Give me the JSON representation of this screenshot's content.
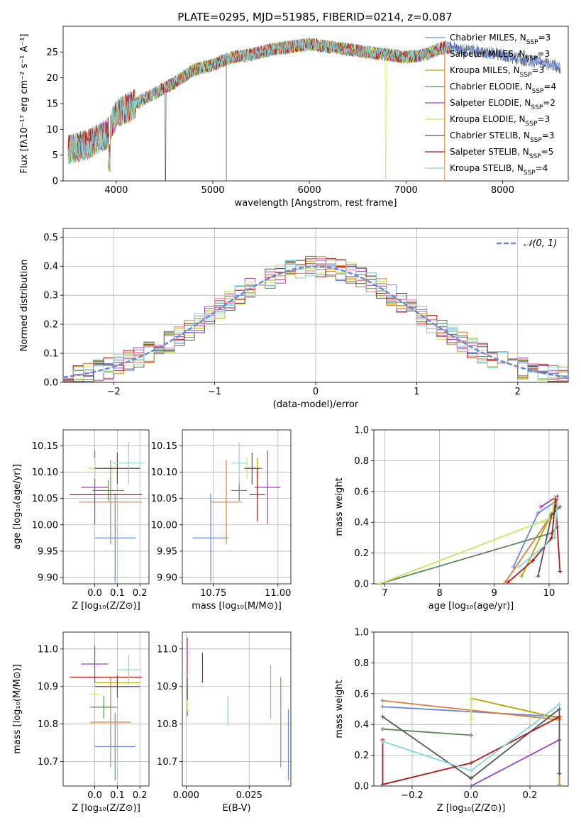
{
  "colors": [
    "#6688dd",
    "#e07b39",
    "#b8a000",
    "#5a8a5a",
    "#a040c0",
    "#c8e860",
    "#555555",
    "#b01818",
    "#80d8dc"
  ],
  "chart_data": [
    {
      "id": "spectrum",
      "type": "line",
      "title": "PLATE=0295, MJD=51985, FIBERID=0214, z=0.087",
      "xlabel": "wavelength [Angstrom, rest frame]",
      "ylabel": "Flux [fλ10⁻¹⁷ erg cm⁻² s⁻¹ A⁻¹]",
      "xlim": [
        3450,
        8680
      ],
      "ylim": [
        0,
        30
      ],
      "xticks": [
        4000,
        5000,
        6000,
        7000,
        8000
      ],
      "yticks": [
        0,
        5,
        10,
        15,
        20,
        25
      ],
      "grid": false,
      "legend_position": "top-right",
      "continuum": {
        "x": [
          3500,
          3600,
          3700,
          3800,
          3900,
          4000,
          4100,
          4200,
          4400,
          4600,
          4800,
          5000,
          5200,
          5400,
          5600,
          5800,
          6000,
          6200,
          6400,
          6600,
          6800,
          7000,
          7200,
          7400,
          7600,
          7800,
          8000,
          8200,
          8400,
          8600
        ],
        "y": [
          6,
          6.5,
          7,
          8,
          9,
          13,
          14,
          15,
          17,
          19,
          21.5,
          22.5,
          24,
          24.5,
          25.5,
          26,
          26.5,
          26,
          25.5,
          25,
          24.5,
          24,
          24.5,
          26,
          25.5,
          25,
          24.5,
          23.5,
          23,
          22
        ]
      },
      "series": [
        {
          "name": "Chabrier MILES, N_SSP=3",
          "label_main": "Chabrier MILES, N",
          "label_sub": "SSP",
          "label_tail": "=3",
          "drop_at": null
        },
        {
          "name": "Salpeter MILES, N_SSP=3",
          "label_main": "Salpeter MILES, N",
          "label_sub": "SSP",
          "label_tail": "=3",
          "drop_at": 7400
        },
        {
          "name": "Kroupa MILES, N_SSP=3",
          "label_main": "Kroupa MILES, N",
          "label_sub": "SSP",
          "label_tail": "=3",
          "drop_at": null
        },
        {
          "name": "Chabrier ELODIE, N_SSP=4",
          "label_main": "Chabrier ELODIE, N",
          "label_sub": "SSP",
          "label_tail": "=4",
          "drop_at": null
        },
        {
          "name": "Salpeter ELODIE, N_SSP=2",
          "label_main": "Salpeter ELODIE, N",
          "label_sub": "SSP",
          "label_tail": "=2",
          "drop_at": null
        },
        {
          "name": "Kroupa ELODIE, N_SSP=3",
          "label_main": "Kroupa ELODIE, N",
          "label_sub": "SSP",
          "label_tail": "=3",
          "drop_at": 6790
        },
        {
          "name": "Chabrier STELIB, N_SSP=3",
          "label_main": "Chabrier STELIB, N",
          "label_sub": "SSP",
          "label_tail": "=3",
          "drop_at": 4510
        },
        {
          "name": "Salpeter STELIB, N_SSP=5",
          "label_main": "Salpeter STELIB, N",
          "label_sub": "SSP",
          "label_tail": "=5",
          "drop_at": null
        },
        {
          "name": "Kroupa STELIB, N_SSP=4",
          "label_main": "Kroupa STELIB, N",
          "label_sub": "SSP",
          "label_tail": "=4",
          "drop_at": null
        }
      ],
      "extra_drops": [
        5140
      ]
    },
    {
      "id": "residuals",
      "type": "step",
      "xlabel": "(data-model)/error",
      "ylabel": "Normed distribution",
      "xlim": [
        -2.5,
        2.5
      ],
      "ylim": [
        0,
        0.53
      ],
      "xticks": [
        -2,
        -1,
        0,
        1,
        2
      ],
      "yticks": [
        0.0,
        0.1,
        0.2,
        0.3,
        0.4,
        0.5
      ],
      "bin_width": 0.1,
      "grid": true,
      "legend": "𝒩(0, 1)",
      "legend_position": "top-right",
      "reference": "normal(0,1)"
    },
    {
      "id": "age_vs_Z",
      "type": "errorbar",
      "xlabel": "Z [log₁₀(Z/Z⊙)]",
      "ylabel": "age  [log₁₀(age/yr)]",
      "xlim": [
        -0.14,
        0.24
      ],
      "ylim": [
        9.888,
        10.18
      ],
      "xticks": [
        0.0,
        0.1,
        0.2
      ],
      "yticks": [
        9.9,
        9.95,
        10.0,
        10.05,
        10.1,
        10.15
      ],
      "grid": true,
      "points": [
        {
          "x": 0.09,
          "xerr": 0.09,
          "y": 9.975,
          "yerr": 0.085
        },
        {
          "x": 0.07,
          "xerr": 0.14,
          "y": 10.043,
          "yerr": 0.08
        },
        {
          "x": 0.1,
          "xerr": 0.1,
          "y": 10.107,
          "yerr": 0.02
        },
        {
          "x": 0.06,
          "xerr": 0.07,
          "y": 10.065,
          "yerr": 0.02
        },
        {
          "x": 0.0,
          "xerr": 0.06,
          "y": 10.071,
          "yerr": 0.07
        },
        {
          "x": 0.0,
          "xerr": 0.03,
          "y": 10.107,
          "yerr": 0.02
        },
        {
          "x": 0.1,
          "xerr": 0.1,
          "y": 10.107,
          "yerr": 0.03
        },
        {
          "x": 0.05,
          "xerr": 0.16,
          "y": 10.057,
          "yerr": 0.001
        },
        {
          "x": 0.15,
          "xerr": 0.07,
          "y": 10.117,
          "yerr": 0.04
        }
      ]
    },
    {
      "id": "age_vs_mass",
      "type": "errorbar",
      "xlabel": "mass [log₁₀(M/M⊙)]",
      "ylabel": "",
      "xlim": [
        10.63,
        11.05
      ],
      "ylim": [
        9.888,
        10.18
      ],
      "xticks": [
        10.75,
        11.0
      ],
      "xticklabels": [
        "10.75",
        "11.00"
      ],
      "yticks": [
        9.9,
        9.95,
        10.0,
        10.05,
        10.1,
        10.15
      ],
      "grid": true,
      "points": [
        {
          "x": 10.74,
          "xerr": 0.07,
          "y": 9.975,
          "yerr": 0.085
        },
        {
          "x": 10.8,
          "xerr": 0.06,
          "y": 10.043,
          "yerr": 0.08
        },
        {
          "x": 10.92,
          "xerr": 0.02,
          "y": 10.107,
          "yerr": 0.02
        },
        {
          "x": 10.85,
          "xerr": 0.03,
          "y": 10.065,
          "yerr": 0.02
        },
        {
          "x": 10.96,
          "xerr": 0.05,
          "y": 10.071,
          "yerr": 0.07
        },
        {
          "x": 10.88,
          "xerr": 0.01,
          "y": 10.107,
          "yerr": 0.02
        },
        {
          "x": 10.9,
          "xerr": 0.03,
          "y": 10.107,
          "yerr": 0.03
        },
        {
          "x": 10.92,
          "xerr": 0.03,
          "y": 10.057,
          "yerr": 0.05
        },
        {
          "x": 10.85,
          "xerr": 0.03,
          "y": 10.117,
          "yerr": 0.04
        }
      ]
    },
    {
      "id": "weight_vs_age",
      "type": "line",
      "xlabel": "age  [log₁₀(age/yr)]",
      "ylabel": "mass weight",
      "xlim": [
        6.8,
        10.35
      ],
      "ylim": [
        0,
        1
      ],
      "xticks": [
        7,
        8,
        9,
        10
      ],
      "yticks": [
        0.0,
        0.2,
        0.4,
        0.6,
        0.8,
        1.0
      ],
      "grid": true,
      "series": [
        {
          "x": [
            9.35,
            9.8,
            10.1
          ],
          "y": [
            0.11,
            0.46,
            0.53
          ]
        },
        {
          "x": [
            9.2,
            10.05,
            10.15
          ],
          "y": [
            0.01,
            0.45,
            0.55
          ]
        },
        {
          "x": [
            9.5,
            10.1
          ],
          "y": [
            0.05,
            0.5
          ]
        },
        {
          "x": [
            6.9,
            10.05,
            10.15
          ],
          "y": [
            0.0,
            0.33,
            0.37
          ]
        },
        {
          "x": [
            9.85,
            10.15
          ],
          "y": [
            0.5,
            0.57
          ]
        },
        {
          "x": [
            6.9,
            10.05,
            10.1
          ],
          "y": [
            0.0,
            0.43,
            0.57
          ]
        },
        {
          "x": [
            9.8,
            10.05,
            10.2
          ],
          "y": [
            0.05,
            0.45,
            0.5
          ]
        },
        {
          "x": [
            9.25,
            9.7,
            10.05,
            10.12,
            10.2
          ],
          "y": [
            0.01,
            0.15,
            0.3,
            0.55,
            0.08
          ]
        },
        {
          "x": [
            9.45,
            10.1,
            10.15
          ],
          "y": [
            0.11,
            0.3,
            0.52
          ]
        }
      ]
    },
    {
      "id": "mass_vs_Z",
      "type": "errorbar",
      "xlabel": "Z [log₁₀(Z/Z⊙)]",
      "ylabel": "mass [log₁₀(M/M⊙)]",
      "xlim": [
        -0.14,
        0.24
      ],
      "ylim": [
        10.635,
        11.045
      ],
      "xticks": [
        0.0,
        0.1,
        0.2
      ],
      "yticks": [
        10.7,
        10.8,
        10.9,
        11.0
      ],
      "grid": true,
      "points": [
        {
          "x": 0.09,
          "xerr": 0.09,
          "y": 10.74,
          "yerr": 0.09
        },
        {
          "x": 0.07,
          "xerr": 0.09,
          "y": 10.805,
          "yerr": 0.12
        },
        {
          "x": 0.1,
          "xerr": 0.1,
          "y": 10.91,
          "yerr": 0.01
        },
        {
          "x": 0.04,
          "xerr": 0.06,
          "y": 10.845,
          "yerr": 0.03
        },
        {
          "x": 0.0,
          "xerr": 0.06,
          "y": 10.96,
          "yerr": 0.05
        },
        {
          "x": 0.0,
          "xerr": 0.02,
          "y": 10.88,
          "yerr": 0.02
        },
        {
          "x": 0.1,
          "xerr": 0.1,
          "y": 10.9,
          "yerr": 0.03
        },
        {
          "x": 0.05,
          "xerr": 0.16,
          "y": 10.925,
          "yerr": 0.001
        },
        {
          "x": 0.15,
          "xerr": 0.05,
          "y": 10.945,
          "yerr": 0.04
        }
      ]
    },
    {
      "id": "mass_vs_EBV",
      "type": "errorbar",
      "xlabel": "E(B-V)",
      "ylabel": "",
      "xlim": [
        -0.0015,
        0.0415
      ],
      "ylim": [
        10.635,
        11.045
      ],
      "xticks": [
        0.0,
        0.025
      ],
      "xticklabels": [
        "0.000",
        "0.025"
      ],
      "yticks": [
        10.7,
        10.8,
        10.9,
        11.0
      ],
      "grid": true,
      "points": [
        {
          "x": 0.0405,
          "y": 10.745,
          "yerr": 0.095
        },
        {
          "x": 0.0375,
          "y": 10.805,
          "yerr": 0.12
        },
        {
          "x": 0.0005,
          "y": 10.9,
          "yerr": 0.03
        },
        {
          "x": 0.0005,
          "y": 10.855,
          "yerr": 0.035
        },
        {
          "x": 0.0005,
          "y": 10.98,
          "yerr": 0.05
        },
        {
          "x": 0.0005,
          "y": 10.855,
          "yerr": 0.02
        },
        {
          "x": 0.0005,
          "y": 10.895,
          "yerr": 0.03
        },
        {
          "x": 0.0065,
          "y": 10.95,
          "yerr": 0.04
        },
        {
          "x": 0.0165,
          "y": 10.835,
          "yerr": 0.04
        },
        {
          "x": 0.0335,
          "y": 10.885,
          "yerr": 0.07,
          "color_index": 10
        }
      ]
    },
    {
      "id": "weight_vs_Z",
      "type": "line",
      "xlabel": "Z [log₁₀(Z/Z⊙)]",
      "ylabel": "mass weight",
      "xlim": [
        -0.33,
        0.33
      ],
      "ylim": [
        0,
        1
      ],
      "xticks": [
        -0.2,
        0.0,
        0.2
      ],
      "xticklabels": [
        "−0.2",
        "0.0",
        "0.2"
      ],
      "yticks": [
        0.0,
        0.2,
        0.4,
        0.6,
        0.8,
        1.0
      ],
      "grid": true,
      "series": [
        {
          "x": [
            -0.3,
            0.3
          ],
          "y": [
            0.515,
            0.45
          ]
        },
        {
          "x": [
            -0.3,
            0.3,
            0.3
          ],
          "y": [
            0.555,
            0.43,
            0.01
          ]
        },
        {
          "x": [
            0.0,
            0.3
          ],
          "y": [
            0.57,
            0.44
          ]
        },
        {
          "x": [
            -0.3,
            0.0
          ],
          "y": [
            0.37,
            0.33
          ]
        },
        {
          "x": [
            0.0,
            0.3
          ],
          "y": [
            0.0,
            0.3
          ]
        },
        {
          "x": [
            0.0,
            0.0
          ],
          "y": [
            0.43,
            0.57
          ]
        },
        {
          "x": [
            -0.3,
            0.0,
            0.3,
            0.3
          ],
          "y": [
            0.45,
            0.05,
            0.5,
            0.08
          ]
        },
        {
          "x": [
            -0.3,
            -0.3,
            0.0,
            0.3
          ],
          "y": [
            0.3,
            0.01,
            0.15,
            0.45
          ]
        },
        {
          "x": [
            -0.3,
            0.0,
            0.3
          ],
          "y": [
            0.29,
            0.1,
            0.53
          ]
        }
      ]
    }
  ]
}
